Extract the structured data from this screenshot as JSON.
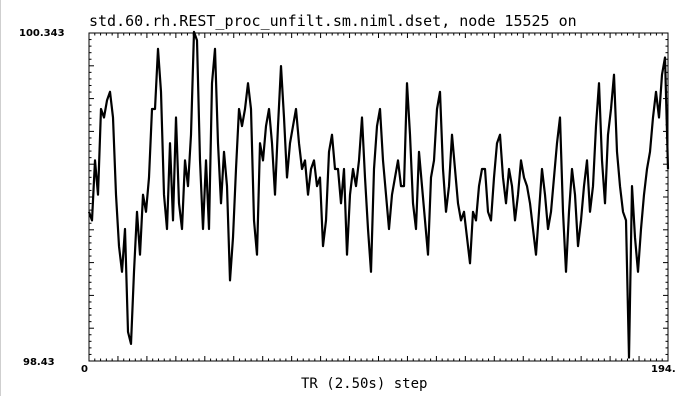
{
  "title": "std.60.rh.REST_proc_unfilt.sm.niml.dset, node 15525 on",
  "chart_data": {
    "type": "line",
    "xlabel": "TR (2.50s) step",
    "ylim": [
      98.43,
      100.343
    ],
    "xlim": [
      0,
      194
    ],
    "ytick_labels": [
      "100.343",
      "98.43"
    ],
    "xtick_labels": [
      "0",
      "194."
    ],
    "grid": false,
    "series": [
      {
        "values": [
          99.3,
          99.25,
          99.6,
          99.4,
          99.9,
          99.85,
          99.95,
          100.0,
          99.85,
          99.4,
          99.1,
          98.95,
          99.2,
          98.6,
          98.53,
          98.95,
          99.3,
          99.05,
          99.4,
          99.3,
          99.5,
          99.9,
          99.9,
          100.25,
          100.0,
          99.4,
          99.2,
          99.7,
          99.25,
          99.85,
          99.35,
          99.2,
          99.6,
          99.45,
          99.75,
          100.35,
          100.3,
          99.6,
          99.2,
          99.6,
          99.2,
          100.05,
          100.25,
          99.7,
          99.35,
          99.65,
          99.45,
          98.9,
          99.15,
          99.55,
          99.9,
          99.8,
          99.9,
          100.05,
          99.9,
          99.25,
          99.05,
          99.7,
          99.6,
          99.8,
          99.9,
          99.7,
          99.4,
          99.8,
          100.15,
          99.85,
          99.5,
          99.7,
          99.8,
          99.9,
          99.7,
          99.55,
          99.6,
          99.4,
          99.55,
          99.6,
          99.45,
          99.5,
          99.1,
          99.25,
          99.65,
          99.75,
          99.55,
          99.55,
          99.35,
          99.55,
          99.05,
          99.4,
          99.55,
          99.45,
          99.6,
          99.85,
          99.5,
          99.2,
          98.95,
          99.55,
          99.8,
          99.9,
          99.6,
          99.4,
          99.2,
          99.4,
          99.5,
          99.6,
          99.45,
          99.45,
          100.05,
          99.75,
          99.35,
          99.2,
          99.65,
          99.45,
          99.25,
          99.05,
          99.5,
          99.6,
          99.9,
          100.0,
          99.55,
          99.3,
          99.45,
          99.75,
          99.55,
          99.35,
          99.25,
          99.3,
          99.15,
          99.0,
          99.3,
          99.25,
          99.45,
          99.55,
          99.55,
          99.3,
          99.25,
          99.5,
          99.7,
          99.75,
          99.5,
          99.35,
          99.55,
          99.45,
          99.25,
          99.4,
          99.6,
          99.5,
          99.45,
          99.35,
          99.2,
          99.05,
          99.3,
          99.55,
          99.4,
          99.2,
          99.3,
          99.5,
          99.7,
          99.85,
          99.3,
          98.95,
          99.3,
          99.55,
          99.4,
          99.1,
          99.25,
          99.45,
          99.6,
          99.3,
          99.45,
          99.8,
          100.05,
          99.6,
          99.35,
          99.75,
          99.9,
          100.1,
          99.65,
          99.45,
          99.3,
          99.25,
          98.45,
          99.45,
          99.15,
          98.95,
          99.2,
          99.4,
          99.55,
          99.65,
          99.85,
          100.0,
          99.85,
          100.1,
          100.2,
          99.55
        ]
      }
    ]
  }
}
